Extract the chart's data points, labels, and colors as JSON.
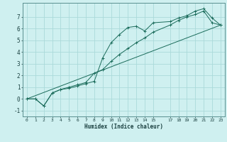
{
  "xlabel": "Humidex (Indice chaleur)",
  "bg_color": "#cff0f0",
  "grid_color": "#aadada",
  "line_color": "#1a6b5a",
  "line1_x": [
    0,
    1,
    2,
    3,
    4,
    5,
    6,
    7,
    8,
    9,
    10,
    11,
    12,
    13,
    14,
    15,
    17,
    18,
    19,
    20,
    21,
    22,
    23
  ],
  "line1_y": [
    0.0,
    0.0,
    -0.6,
    0.5,
    0.8,
    0.9,
    1.1,
    1.3,
    1.5,
    3.5,
    4.8,
    5.5,
    6.1,
    6.2,
    5.8,
    6.5,
    6.6,
    6.9,
    7.1,
    7.5,
    7.7,
    6.9,
    6.3
  ],
  "line2_x": [
    0,
    1,
    2,
    3,
    4,
    5,
    6,
    7,
    8,
    9,
    10,
    11,
    12,
    13,
    14,
    15,
    17,
    18,
    19,
    20,
    21,
    22,
    23
  ],
  "line2_y": [
    0.0,
    0.0,
    -0.6,
    0.5,
    0.8,
    1.0,
    1.2,
    1.4,
    2.2,
    2.5,
    3.2,
    3.8,
    4.3,
    4.8,
    5.2,
    5.7,
    6.3,
    6.7,
    7.0,
    7.2,
    7.5,
    6.5,
    6.3
  ],
  "line3_x": [
    0,
    23
  ],
  "line3_y": [
    0.0,
    6.3
  ],
  "ylim": [
    -1.5,
    8.2
  ],
  "xlim": [
    -0.5,
    23.5
  ],
  "yticks": [
    -1,
    0,
    1,
    2,
    3,
    4,
    5,
    6,
    7
  ],
  "xticks": [
    0,
    1,
    2,
    3,
    4,
    5,
    6,
    7,
    8,
    9,
    10,
    11,
    12,
    13,
    14,
    15,
    17,
    18,
    19,
    20,
    21,
    22,
    23
  ]
}
